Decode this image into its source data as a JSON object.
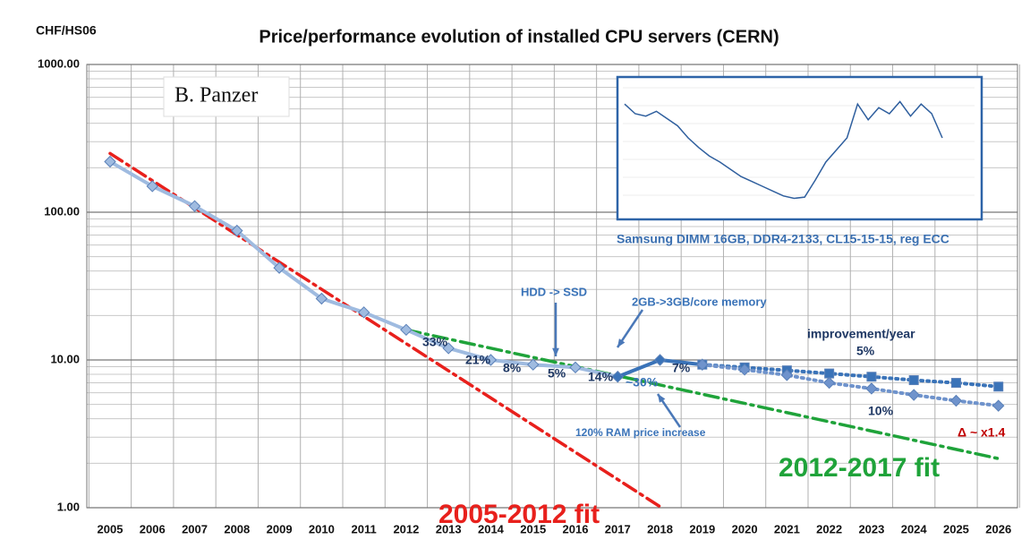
{
  "chart_data": {
    "type": "line",
    "title": "Price/performance evolution of installed CPU servers   (CERN)",
    "y_axis_label": "CHF/HS06",
    "log_y": true,
    "grid": true,
    "xlim": [
      2004.45,
      2026.45
    ],
    "xticks": [
      2005,
      2006,
      2007,
      2008,
      2009,
      2010,
      2011,
      2012,
      2013,
      2014,
      2015,
      2016,
      2017,
      2018,
      2019,
      2020,
      2021,
      2022,
      2023,
      2024,
      2025,
      2026
    ],
    "ylim": [
      1,
      1000
    ],
    "yticks": [
      {
        "value": 1,
        "label": "1.00"
      },
      {
        "value": 10,
        "label": "10.00"
      },
      {
        "value": 100,
        "label": "100.00"
      },
      {
        "value": 1000,
        "label": "1000.00"
      }
    ],
    "series": [
      {
        "name": "2005-2012 fit",
        "color": "#e8201c",
        "style": "dashdot",
        "x": [
          2005,
          2018.04
        ],
        "values": [
          250,
          1
        ]
      },
      {
        "name": "2012-2017 fit",
        "color": "#1fa33a",
        "style": "dashdot",
        "x": [
          2012,
          2026
        ],
        "values": [
          16,
          2.15
        ]
      },
      {
        "color": "#9fbbe0",
        "marker": "diamond",
        "style": "solid",
        "x": [
          2005,
          2006,
          2007,
          2008,
          2009,
          2010,
          2011,
          2012,
          2013,
          2014,
          2015,
          2016,
          2017
        ],
        "values": [
          220,
          150,
          110,
          75,
          42,
          26,
          21,
          16,
          12,
          10,
          9.3,
          8.9,
          7.7
        ]
      },
      {
        "color": "#3a73b8",
        "marker": "diamond",
        "style": "solid",
        "x": [
          2017,
          2018,
          2019
        ],
        "values": [
          7.7,
          10,
          9.3
        ]
      },
      {
        "color": "#3a73b8",
        "marker": "square",
        "style": "dotted",
        "x": [
          2019,
          2020,
          2021,
          2022,
          2023,
          2024,
          2025,
          2026
        ],
        "values": [
          9.3,
          8.9,
          8.5,
          8.1,
          7.7,
          7.3,
          7.0,
          6.6
        ]
      },
      {
        "color": "#6f93cc",
        "marker": "diamond",
        "style": "dotted",
        "x": [
          2019,
          2020,
          2021,
          2022,
          2023,
          2024,
          2025,
          2026
        ],
        "values": [
          9.3,
          8.6,
          7.9,
          7.0,
          6.4,
          5.8,
          5.3,
          4.9
        ]
      }
    ],
    "annotations": [
      "B. Panzer",
      "33%",
      "21%",
      "8%",
      "5%",
      "14%",
      "7%",
      "HDD -> SSD",
      "2GB->3GB/core memory",
      "improvement/year",
      "5%",
      "10%",
      "~30%",
      "120% RAM price increase",
      "Δ ~ x1.4"
    ],
    "inset": {
      "caption": "Samsung DIMM 16GB, DDR4-2133, CL15-15-15, reg ECC",
      "color": "#2f5f9e",
      "ylim": [
        0,
        100
      ],
      "values": [
        88,
        80,
        78,
        82,
        76,
        70,
        60,
        52,
        45,
        40,
        34,
        28,
        24,
        20,
        16,
        12,
        10,
        11,
        25,
        40,
        50,
        60,
        88,
        75,
        85,
        80,
        90,
        78,
        88,
        80,
        60
      ]
    }
  }
}
